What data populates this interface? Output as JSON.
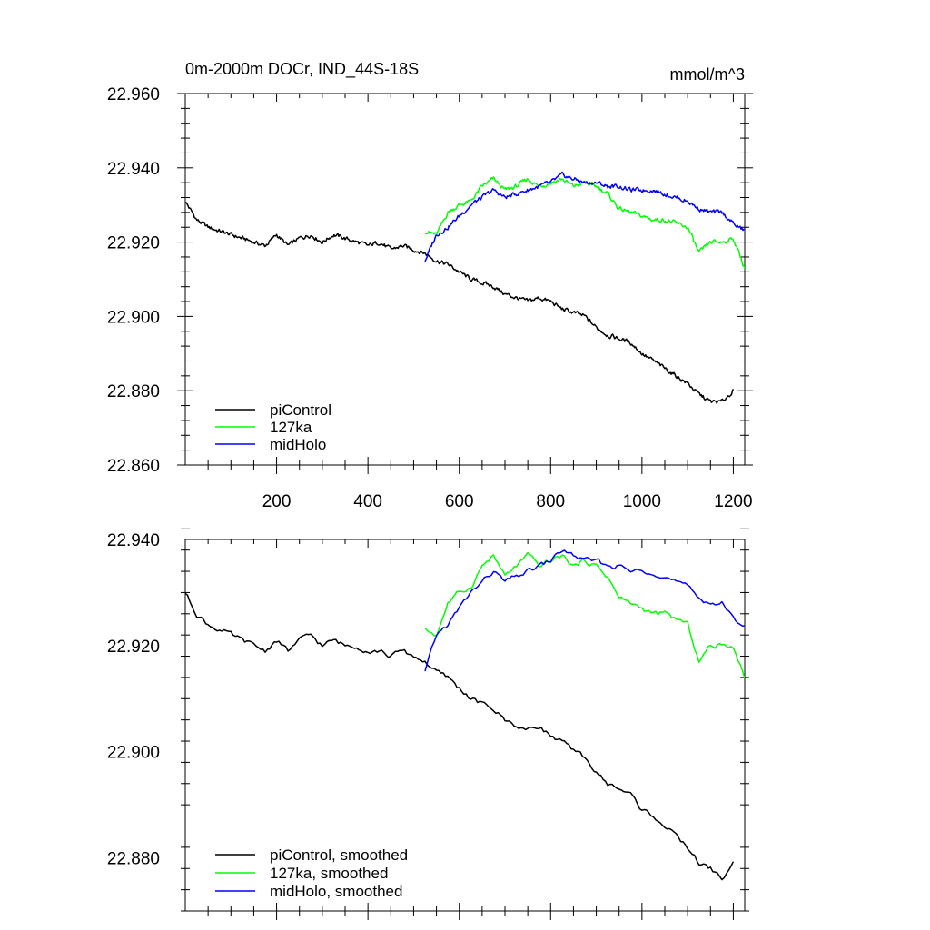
{
  "figure": {
    "title_left": "0m-2000m DOCr, IND_44S-18S",
    "title_right": "mmol/m^3"
  },
  "chart_data": [
    {
      "type": "line",
      "title": "0m-2000m DOCr, IND_44S-18S",
      "units_label": "mmol/m^3",
      "xlim": [
        0,
        1225
      ],
      "ylim": [
        22.86,
        22.96
      ],
      "x_ticks": [
        200,
        400,
        600,
        800,
        1000,
        1200
      ],
      "x_tick_labels": [
        "200",
        "400",
        "600",
        "800",
        "1000",
        "1200"
      ],
      "y_ticks": [
        22.86,
        22.88,
        22.9,
        22.92,
        22.94,
        22.96
      ],
      "y_tick_labels": [
        "22.860",
        "22.880",
        "22.900",
        "22.920",
        "22.940",
        "22.960"
      ],
      "legend_position": "bottom-left",
      "series": [
        {
          "name": "piControl",
          "color": "#000000",
          "x": [
            0,
            25,
            50,
            75,
            100,
            125,
            150,
            175,
            200,
            225,
            250,
            275,
            300,
            325,
            350,
            375,
            400,
            425,
            450,
            475,
            500,
            525,
            550,
            575,
            600,
            625,
            650,
            675,
            700,
            725,
            750,
            775,
            800,
            825,
            850,
            875,
            900,
            925,
            950,
            975,
            1000,
            1025,
            1050,
            1075,
            1100,
            1125,
            1150,
            1175,
            1200
          ],
          "values": [
            22.931,
            22.926,
            22.924,
            22.923,
            22.922,
            22.921,
            22.92,
            22.919,
            22.922,
            22.919,
            22.921,
            22.922,
            22.92,
            22.922,
            22.921,
            22.92,
            22.919,
            22.92,
            22.918,
            22.919,
            22.918,
            22.917,
            22.915,
            22.914,
            22.912,
            22.91,
            22.909,
            22.908,
            22.906,
            22.905,
            22.904,
            22.905,
            22.904,
            22.902,
            22.901,
            22.9,
            22.897,
            22.895,
            22.894,
            22.893,
            22.89,
            22.888,
            22.886,
            22.884,
            22.882,
            22.879,
            22.877,
            22.877,
            22.88
          ]
        },
        {
          "name": "127ka",
          "color": "#00ff00",
          "x": [
            525,
            550,
            575,
            600,
            625,
            650,
            675,
            700,
            725,
            750,
            775,
            800,
            825,
            850,
            875,
            900,
            925,
            950,
            975,
            1000,
            1025,
            1050,
            1075,
            1100,
            1125,
            1150,
            1175,
            1200,
            1225
          ],
          "values": [
            22.923,
            22.922,
            22.928,
            22.93,
            22.931,
            22.935,
            22.937,
            22.934,
            22.935,
            22.937,
            22.935,
            22.936,
            22.937,
            22.935,
            22.936,
            22.935,
            22.933,
            22.929,
            22.928,
            22.927,
            22.926,
            22.926,
            22.925,
            22.924,
            22.917,
            22.92,
            22.92,
            22.921,
            22.913
          ]
        },
        {
          "name": "midHolo",
          "color": "#0000ff",
          "x": [
            525,
            550,
            575,
            600,
            625,
            650,
            675,
            700,
            725,
            750,
            775,
            800,
            825,
            850,
            875,
            900,
            925,
            950,
            975,
            1000,
            1025,
            1050,
            1075,
            1100,
            1125,
            1150,
            1175,
            1200,
            1225
          ],
          "values": [
            22.915,
            22.922,
            22.924,
            22.927,
            22.93,
            22.932,
            22.934,
            22.932,
            22.933,
            22.934,
            22.935,
            22.936,
            22.938,
            22.937,
            22.936,
            22.936,
            22.935,
            22.935,
            22.934,
            22.934,
            22.934,
            22.933,
            22.932,
            22.931,
            22.929,
            22.928,
            22.928,
            22.925,
            22.923
          ]
        }
      ]
    },
    {
      "type": "line",
      "xlim": [
        0,
        1225
      ],
      "ylim": [
        22.87,
        22.94
      ],
      "x_ticks": [
        200,
        400,
        600,
        800,
        1000,
        1200
      ],
      "y_ticks": [
        22.88,
        22.9,
        22.92,
        22.94
      ],
      "y_tick_labels": [
        "22.880",
        "22.900",
        "22.920",
        "22.940"
      ],
      "legend_position": "bottom-left",
      "series": [
        {
          "name": "piControl, smoothed",
          "color": "#000000",
          "x": [
            0,
            25,
            50,
            75,
            100,
            125,
            150,
            175,
            200,
            225,
            250,
            275,
            300,
            325,
            350,
            375,
            400,
            425,
            450,
            475,
            500,
            525,
            550,
            575,
            600,
            625,
            650,
            675,
            700,
            725,
            750,
            775,
            800,
            825,
            850,
            875,
            900,
            925,
            950,
            975,
            1000,
            1025,
            1050,
            1075,
            1100,
            1125,
            1150,
            1175,
            1200
          ],
          "values": [
            22.93,
            22.926,
            22.924,
            22.923,
            22.922,
            22.921,
            22.92,
            22.919,
            22.921,
            22.919,
            22.921,
            22.922,
            22.92,
            22.921,
            22.92,
            22.92,
            22.919,
            22.919,
            22.918,
            22.919,
            22.918,
            22.917,
            22.915,
            22.914,
            22.912,
            22.91,
            22.909,
            22.908,
            22.906,
            22.905,
            22.904,
            22.905,
            22.903,
            22.902,
            22.9,
            22.899,
            22.896,
            22.894,
            22.893,
            22.892,
            22.889,
            22.888,
            22.886,
            22.884,
            22.882,
            22.879,
            22.878,
            22.876,
            22.879
          ]
        },
        {
          "name": "127ka, smoothed",
          "color": "#00ff00",
          "x": [
            525,
            550,
            575,
            600,
            625,
            650,
            675,
            700,
            725,
            750,
            775,
            800,
            825,
            850,
            875,
            900,
            925,
            950,
            975,
            1000,
            1025,
            1050,
            1075,
            1100,
            1125,
            1150,
            1175,
            1200,
            1225
          ],
          "values": [
            22.923,
            22.922,
            22.928,
            22.93,
            22.931,
            22.935,
            22.937,
            22.933,
            22.935,
            22.937,
            22.935,
            22.936,
            22.937,
            22.935,
            22.936,
            22.935,
            22.933,
            22.929,
            22.928,
            22.927,
            22.926,
            22.926,
            22.925,
            22.924,
            22.917,
            22.92,
            22.92,
            22.92,
            22.914
          ]
        },
        {
          "name": "midHolo, smoothed",
          "color": "#0000ff",
          "x": [
            525,
            550,
            575,
            600,
            625,
            650,
            675,
            700,
            725,
            750,
            775,
            800,
            825,
            850,
            875,
            900,
            925,
            950,
            975,
            1000,
            1025,
            1050,
            1075,
            1100,
            1125,
            1150,
            1175,
            1200,
            1225
          ],
          "values": [
            22.915,
            22.922,
            22.924,
            22.927,
            22.93,
            22.932,
            22.934,
            22.932,
            22.933,
            22.934,
            22.935,
            22.936,
            22.938,
            22.937,
            22.936,
            22.936,
            22.935,
            22.935,
            22.934,
            22.934,
            22.934,
            22.933,
            22.932,
            22.931,
            22.929,
            22.928,
            22.928,
            22.925,
            22.924
          ]
        }
      ]
    }
  ]
}
